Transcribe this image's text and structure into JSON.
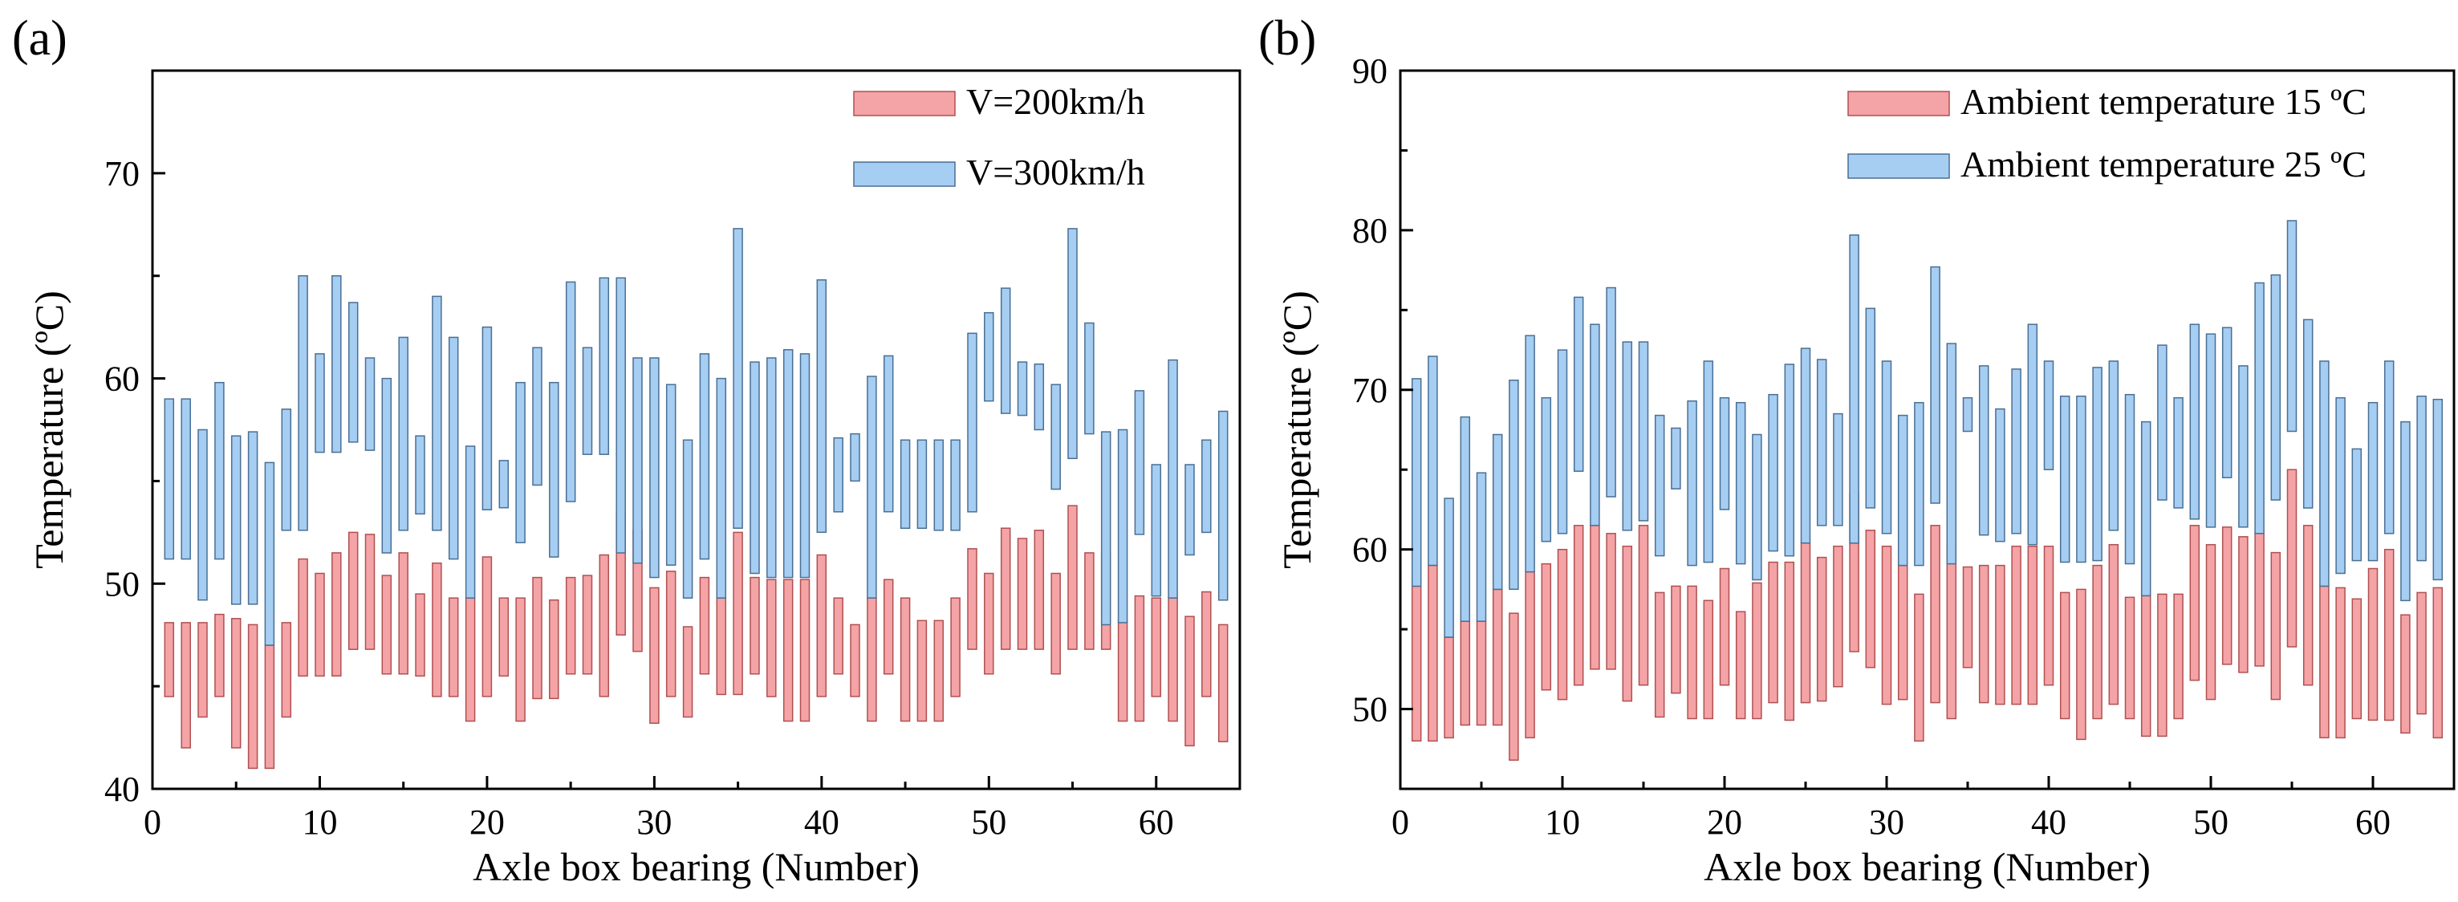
{
  "chart_data": [
    {
      "type": "floating-bar",
      "panel_label": "(a)",
      "xlabel": "Axle box bearing (Number)",
      "ylabel": "Temperature (ºC)",
      "xlim": [
        0,
        65
      ],
      "ylim": [
        40,
        75
      ],
      "xticks": [
        0,
        10,
        20,
        30,
        40,
        50,
        60
      ],
      "yticks": [
        40,
        50,
        60,
        70
      ],
      "legend_position": "top-right",
      "series": [
        {
          "name": "V=200km/h",
          "color": "#f4a3a6",
          "edge": "#b05050",
          "low": [
            44.5,
            42.0,
            43.5,
            44.5,
            42.0,
            41.0,
            41.0,
            43.5,
            45.5,
            45.5,
            45.5,
            46.8,
            46.8,
            45.6,
            45.6,
            45.5,
            44.5,
            44.5,
            43.3,
            44.5,
            45.5,
            43.3,
            44.4,
            44.4,
            45.6,
            45.6,
            44.5,
            47.5,
            46.7,
            43.2,
            44.5,
            43.5,
            45.6,
            44.6,
            44.6,
            45.6,
            44.5,
            43.3,
            43.3,
            44.5,
            45.6,
            44.5,
            43.3,
            45.6,
            43.3,
            43.3,
            43.3,
            44.5,
            46.8,
            45.6,
            46.8,
            46.8,
            46.8,
            45.6,
            46.8,
            46.8,
            46.8,
            43.3,
            43.3,
            44.5,
            43.3,
            42.1,
            44.5,
            42.3
          ],
          "high": [
            48.1,
            48.1,
            48.1,
            48.5,
            48.3,
            48.0,
            47.0,
            48.1,
            51.2,
            50.5,
            51.5,
            52.5,
            52.4,
            50.4,
            51.5,
            49.5,
            51.0,
            49.3,
            49.3,
            51.3,
            49.3,
            49.3,
            50.3,
            49.2,
            50.3,
            50.4,
            51.4,
            53.5,
            52.6,
            49.8,
            50.6,
            47.9,
            50.3,
            49.3,
            52.5,
            50.3,
            50.2,
            50.2,
            50.2,
            51.4,
            49.3,
            48.0,
            49.3,
            50.2,
            49.3,
            48.2,
            48.2,
            49.3,
            51.7,
            50.5,
            52.7,
            52.2,
            52.6,
            50.5,
            53.8,
            51.5,
            51.5,
            48.2,
            49.4,
            49.3,
            49.3,
            48.4,
            49.6,
            48.0
          ]
        },
        {
          "name": "V=300km/h",
          "color": "#a6cdf2",
          "edge": "#4a6f93",
          "low": [
            51.2,
            51.2,
            49.2,
            51.2,
            49.0,
            49.0,
            47.0,
            52.6,
            52.6,
            56.4,
            56.4,
            56.9,
            56.5,
            51.5,
            52.6,
            53.4,
            52.6,
            51.2,
            49.3,
            53.6,
            53.7,
            52.0,
            54.8,
            51.3,
            54.0,
            56.3,
            56.3,
            51.5,
            51.0,
            50.3,
            50.9,
            49.3,
            51.2,
            49.3,
            52.7,
            50.5,
            50.3,
            50.3,
            50.3,
            52.5,
            53.5,
            55.0,
            49.3,
            53.5,
            52.7,
            52.7,
            52.6,
            52.6,
            53.5,
            58.9,
            58.3,
            58.2,
            57.5,
            54.6,
            56.1,
            57.3,
            48.0,
            48.1,
            52.4,
            49.4,
            49.3,
            51.4,
            52.5,
            49.2
          ],
          "high": [
            59.0,
            59.0,
            57.5,
            59.8,
            57.2,
            57.4,
            55.9,
            58.5,
            65.0,
            61.2,
            65.0,
            63.7,
            61.0,
            60.0,
            62.0,
            57.2,
            64.0,
            62.0,
            56.7,
            62.5,
            56.0,
            59.8,
            61.5,
            59.8,
            64.7,
            61.5,
            64.9,
            64.9,
            61.0,
            61.0,
            59.7,
            57.0,
            61.2,
            60.0,
            67.3,
            60.8,
            61.0,
            61.4,
            61.2,
            64.8,
            57.1,
            57.3,
            60.1,
            61.1,
            57.0,
            57.0,
            57.0,
            57.0,
            62.2,
            63.2,
            64.4,
            60.8,
            60.7,
            59.7,
            67.3,
            62.7,
            57.4,
            57.5,
            59.4,
            55.8,
            60.9,
            55.8,
            57.0,
            58.4
          ]
        }
      ]
    },
    {
      "type": "floating-bar",
      "panel_label": "(b)",
      "xlabel": "Axle box bearing (Number)",
      "ylabel": "Temperature (ºC)",
      "xlim": [
        0,
        65
      ],
      "ylim": [
        45,
        90
      ],
      "xticks": [
        0,
        10,
        20,
        30,
        40,
        50,
        60
      ],
      "yticks": [
        50,
        60,
        70,
        80,
        90
      ],
      "legend_position": "top-right",
      "series": [
        {
          "name": "Ambient temperature 15 ºC",
          "color": "#f4a3a6",
          "edge": "#b05050",
          "low": [
            48.0,
            48.0,
            48.2,
            49.0,
            49.0,
            49.0,
            46.8,
            48.2,
            51.2,
            50.6,
            51.5,
            52.5,
            52.5,
            50.5,
            51.5,
            49.5,
            51.0,
            49.4,
            49.4,
            51.5,
            49.4,
            49.4,
            50.4,
            49.3,
            50.4,
            50.5,
            51.4,
            53.6,
            52.6,
            50.3,
            50.6,
            48.0,
            50.4,
            49.4,
            52.6,
            50.4,
            50.3,
            50.3,
            50.3,
            51.5,
            49.4,
            48.1,
            49.4,
            50.3,
            49.4,
            48.3,
            48.3,
            49.4,
            51.8,
            50.6,
            52.8,
            52.3,
            52.7,
            50.6,
            53.9,
            51.5,
            48.2,
            48.2,
            49.4,
            49.3,
            49.3,
            48.5,
            49.7,
            48.2
          ],
          "high": [
            57.7,
            59.0,
            54.5,
            55.5,
            55.5,
            57.5,
            56.0,
            58.6,
            59.1,
            60.0,
            61.5,
            61.5,
            61.0,
            60.2,
            61.5,
            57.3,
            57.7,
            57.7,
            56.8,
            58.8,
            56.1,
            57.9,
            59.2,
            59.2,
            60.4,
            59.5,
            60.2,
            63.5,
            61.2,
            60.2,
            59.0,
            57.2,
            61.5,
            60.2,
            58.9,
            59.0,
            59.0,
            60.2,
            60.2,
            60.2,
            57.3,
            57.5,
            59.0,
            60.3,
            57.0,
            57.2,
            57.2,
            57.2,
            61.5,
            60.3,
            61.4,
            60.8,
            61.0,
            59.8,
            65.0,
            61.5,
            57.7,
            57.6,
            56.9,
            58.8,
            60.0,
            55.9,
            57.3,
            57.6
          ]
        },
        {
          "name": "Ambient temperature 25 ºC",
          "color": "#a6cdf2",
          "edge": "#4a6f93",
          "low": [
            57.7,
            59.0,
            54.5,
            55.5,
            55.5,
            57.5,
            57.5,
            58.6,
            60.5,
            61.0,
            64.9,
            61.5,
            63.3,
            61.2,
            61.8,
            59.6,
            63.8,
            59.0,
            59.2,
            62.5,
            59.1,
            58.1,
            59.9,
            59.6,
            60.4,
            61.5,
            61.5,
            60.4,
            62.6,
            61.0,
            59.0,
            59.0,
            62.9,
            59.1,
            67.4,
            60.9,
            60.5,
            61.0,
            60.3,
            65.0,
            59.2,
            59.2,
            59.3,
            61.2,
            59.1,
            57.1,
            63.1,
            62.6,
            61.9,
            61.4,
            64.5,
            61.4,
            61.0,
            63.1,
            67.4,
            62.6,
            57.7,
            58.5,
            59.3,
            59.3,
            61.0,
            56.8,
            59.3,
            58.1
          ],
          "high": [
            70.7,
            72.1,
            63.2,
            68.3,
            64.8,
            67.2,
            70.6,
            73.4,
            69.5,
            72.5,
            75.8,
            74.1,
            76.4,
            73.0,
            73.0,
            68.4,
            67.6,
            69.3,
            71.8,
            69.5,
            69.2,
            67.2,
            69.7,
            71.6,
            72.6,
            71.9,
            68.5,
            79.7,
            75.1,
            71.8,
            68.4,
            69.2,
            77.7,
            72.9,
            69.5,
            71.5,
            68.8,
            71.3,
            74.1,
            71.8,
            69.6,
            69.6,
            71.4,
            71.8,
            69.7,
            68.0,
            72.8,
            69.5,
            74.1,
            73.5,
            73.9,
            71.5,
            76.7,
            77.2,
            80.6,
            74.4,
            71.8,
            69.5,
            66.3,
            69.2,
            71.8,
            68.0,
            69.6,
            69.4
          ]
        }
      ]
    }
  ]
}
